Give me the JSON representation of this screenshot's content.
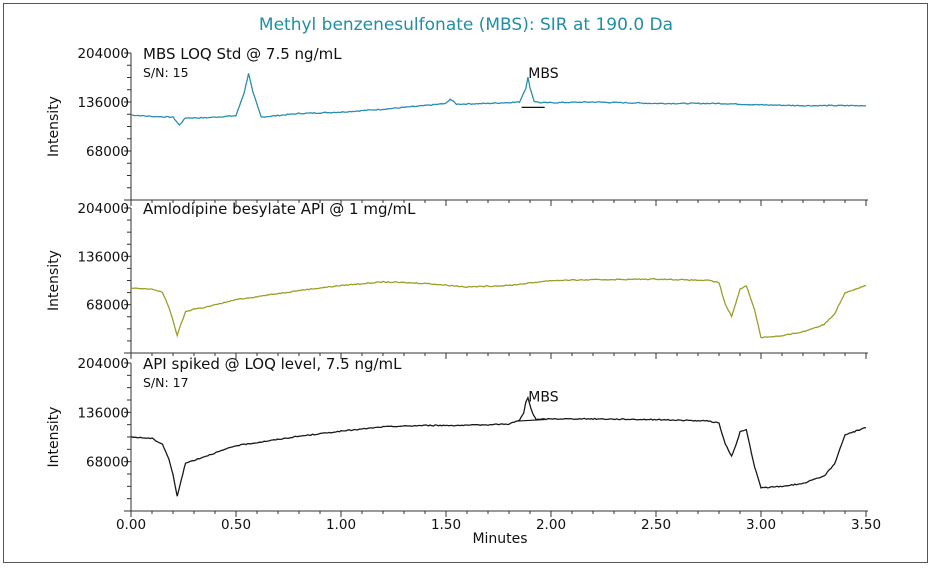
{
  "chart_data": {
    "type": "line",
    "title": "Methyl benzenesulfonate (MBS): SIR at 190.0 Da",
    "title_color": "#1f8ea6",
    "xlabel": "Minutes",
    "ylabel": "Intensity",
    "xlim": [
      0,
      3.5
    ],
    "xticks": [
      "0.00",
      "0.50",
      "1.00",
      "1.50",
      "2.00",
      "2.50",
      "3.00",
      "3.50"
    ],
    "ylim": [
      0,
      204000
    ],
    "yticks": [
      "68000",
      "136000",
      "204000"
    ],
    "grid": false,
    "panels": [
      {
        "label": "MBS LOQ Std @ 7.5 ng/mL",
        "sn": "S/N: 15",
        "color": "#2a8eb0",
        "peak_label": "MBS",
        "peak_label_x": 1.93,
        "peak_label_y": 176000,
        "peak_baseline": [
          [
            1.86,
            128500
          ],
          [
            1.97,
            128500
          ]
        ],
        "series": {
          "name": "",
          "x": [
            0,
            0.1,
            0.2,
            0.23,
            0.26,
            0.35,
            0.5,
            0.54,
            0.56,
            0.58,
            0.62,
            0.8,
            1.0,
            1.2,
            1.4,
            1.5,
            1.52,
            1.55,
            1.7,
            1.85,
            1.88,
            1.89,
            1.9,
            1.92,
            1.95,
            2.0,
            2.2,
            2.5,
            2.8,
            3.0,
            3.2,
            3.5
          ],
          "y": [
            118000,
            116000,
            115000,
            104000,
            114000,
            114000,
            117000,
            150000,
            176000,
            150000,
            115000,
            120000,
            122000,
            126000,
            131000,
            134000,
            140000,
            133000,
            134000,
            136000,
            155000,
            170000,
            156000,
            137000,
            135000,
            135000,
            136000,
            134000,
            134000,
            132000,
            131000,
            131000
          ]
        }
      },
      {
        "label": "Amlodipine besylate API @ 1 mg/mL",
        "sn": "",
        "color": "#9a9f2a",
        "peak_label": "",
        "series": {
          "name": "",
          "x": [
            0,
            0.1,
            0.15,
            0.18,
            0.2,
            0.22,
            0.24,
            0.26,
            0.3,
            0.35,
            0.5,
            0.8,
            1.0,
            1.2,
            1.4,
            1.6,
            1.8,
            2.0,
            2.2,
            2.5,
            2.75,
            2.8,
            2.83,
            2.86,
            2.88,
            2.9,
            2.93,
            2.97,
            3.0,
            3.1,
            3.2,
            3.3,
            3.35,
            3.4,
            3.5
          ],
          "y": [
            91000,
            90000,
            85000,
            65000,
            45000,
            25000,
            42000,
            58000,
            62000,
            64000,
            75000,
            88000,
            95000,
            100000,
            98000,
            93000,
            95000,
            102000,
            103000,
            104000,
            102000,
            99000,
            68000,
            52000,
            70000,
            90000,
            95000,
            60000,
            22000,
            24000,
            30000,
            40000,
            55000,
            85000,
            95000
          ]
        }
      },
      {
        "label": "API spiked @ LOQ level, 7.5 ng/mL",
        "sn": "S/N: 17",
        "color": "#1a1a1a",
        "peak_label": "MBS",
        "peak_label_x": 1.93,
        "peak_label_y": 158000,
        "peak_baseline": [
          [
            1.84,
            124000
          ],
          [
            1.97,
            126000
          ]
        ],
        "series": {
          "name": "",
          "x": [
            0,
            0.1,
            0.15,
            0.18,
            0.2,
            0.22,
            0.24,
            0.26,
            0.3,
            0.35,
            0.5,
            0.8,
            1.0,
            1.2,
            1.4,
            1.6,
            1.8,
            1.85,
            1.87,
            1.88,
            1.89,
            1.91,
            1.93,
            2.0,
            2.2,
            2.5,
            2.75,
            2.8,
            2.83,
            2.86,
            2.88,
            2.9,
            2.93,
            2.97,
            3.0,
            3.1,
            3.2,
            3.3,
            3.35,
            3.4,
            3.5
          ],
          "y": [
            102000,
            100000,
            92000,
            72000,
            50000,
            20000,
            44000,
            66000,
            70000,
            75000,
            90000,
            103000,
            110000,
            116000,
            118000,
            118000,
            120000,
            125000,
            135000,
            150000,
            156000,
            136000,
            126000,
            127000,
            127000,
            126000,
            124000,
            121000,
            92000,
            76000,
            90000,
            109000,
            112000,
            60000,
            32000,
            34000,
            38000,
            48000,
            65000,
            105000,
            115000
          ]
        }
      }
    ]
  }
}
